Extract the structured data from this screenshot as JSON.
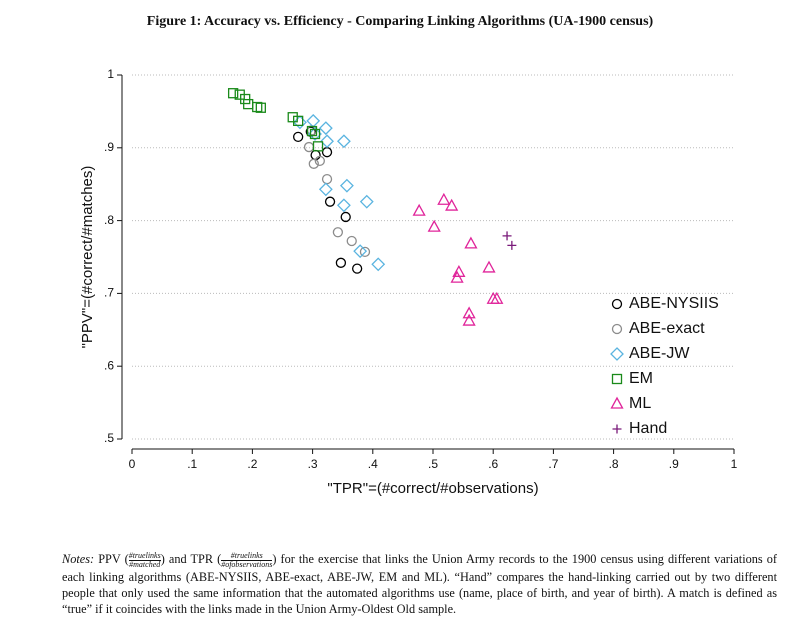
{
  "chart_data": {
    "type": "scatter",
    "title": "Figure 1: Accuracy vs. Efficiency - Comparing Linking Algorithms (UA-1900 census)",
    "xlabel": "\"TPR\"=(#correct/#observations)",
    "ylabel": "\"PPV\"=(#correct/#matches)",
    "xlim": [
      0,
      1
    ],
    "ylim": [
      0.5,
      1
    ],
    "xticks": [
      0,
      {
        "value": 0.1,
        "label": ".1"
      },
      {
        "value": 0.2,
        "label": ".2"
      },
      {
        "value": 0.3,
        "label": ".3"
      },
      {
        "value": 0.4,
        "label": ".4"
      },
      {
        "value": 0.5,
        "label": ".5"
      },
      {
        "value": 0.6,
        "label": ".6"
      },
      {
        "value": 0.7,
        "label": ".7"
      },
      {
        "value": 0.8,
        "label": ".8"
      },
      {
        "value": 0.9,
        "label": ".9"
      },
      1
    ],
    "yticks": [
      {
        "value": 0.5,
        "label": ".5"
      },
      {
        "value": 0.6,
        "label": ".6"
      },
      {
        "value": 0.7,
        "label": ".7"
      },
      {
        "value": 0.8,
        "label": ".8"
      },
      {
        "value": 0.9,
        "label": ".9"
      },
      1
    ],
    "grid": true,
    "legend": "right",
    "series": [
      {
        "name": "ABE-NYSIIS",
        "color": "#000000",
        "marker": "circle",
        "x": [
          0.276,
          0.297,
          0.305,
          0.324,
          0.329,
          0.355,
          0.347,
          0.374
        ],
        "values": [
          0.915,
          0.922,
          0.89,
          0.894,
          0.826,
          0.805,
          0.742,
          0.734
        ]
      },
      {
        "name": "ABE-exact",
        "color": "#8c8c8c",
        "marker": "circle",
        "x": [
          0.294,
          0.302,
          0.312,
          0.324,
          0.342,
          0.365,
          0.387,
          0.299
        ],
        "values": [
          0.901,
          0.878,
          0.882,
          0.857,
          0.784,
          0.772,
          0.757,
          0.924
        ]
      },
      {
        "name": "ABE-JW",
        "color": "#5ab4e0",
        "marker": "diamond",
        "x": [
          0.279,
          0.301,
          0.322,
          0.304,
          0.324,
          0.352,
          0.357,
          0.322,
          0.352,
          0.39,
          0.379,
          0.409
        ],
        "values": [
          0.935,
          0.937,
          0.927,
          0.919,
          0.909,
          0.909,
          0.848,
          0.843,
          0.821,
          0.826,
          0.758,
          0.74
        ]
      },
      {
        "name": "EM",
        "color": "#1a8a1a",
        "marker": "square",
        "x": [
          0.168,
          0.179,
          0.188,
          0.193,
          0.208,
          0.214,
          0.267,
          0.276,
          0.299,
          0.304,
          0.309
        ],
        "values": [
          0.975,
          0.973,
          0.967,
          0.96,
          0.956,
          0.955,
          0.942,
          0.937,
          0.923,
          0.919,
          0.902
        ]
      },
      {
        "name": "ML",
        "color": "#e0249a",
        "marker": "triangle",
        "x": [
          0.477,
          0.502,
          0.518,
          0.531,
          0.563,
          0.543,
          0.54,
          0.593,
          0.6,
          0.606,
          0.56,
          0.56
        ],
        "values": [
          0.813,
          0.791,
          0.828,
          0.82,
          0.768,
          0.729,
          0.721,
          0.735,
          0.692,
          0.692,
          0.672,
          0.662
        ]
      },
      {
        "name": "Hand",
        "color": "#7a1a7a",
        "marker": "plus",
        "x": [
          0.623,
          0.631
        ],
        "values": [
          0.779,
          0.766
        ]
      }
    ]
  },
  "notes": {
    "label": "Notes:",
    "ppv": "PPV (",
    "ppv_num": "#truelinks",
    "ppv_den": "#matched",
    "and": ") and TPR (",
    "tpr_num": "#truelinks",
    "tpr_den": "#ofobservations",
    "text": ") for the exercise that links the Union Army records to the 1900 census using different variations of each linking algorithms (ABE-NYSIIS, ABE-exact, ABE-JW, EM and ML). “Hand” compares the hand-linking carried out by two different people that only used the same information that the automated algorithms use (name, place of birth, and year of birth). A match is defined as “true” if it coincides with the links made in the Union Army-Oldest Old sample."
  }
}
